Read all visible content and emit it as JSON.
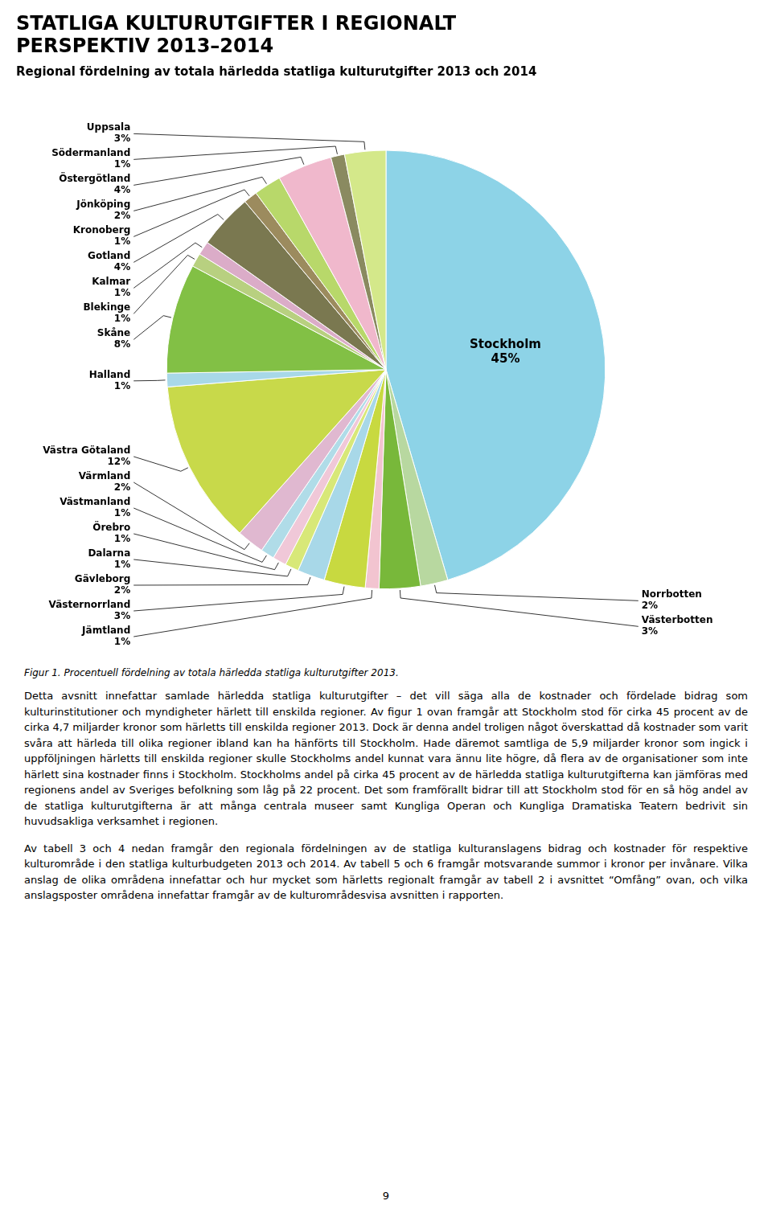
{
  "chart_data": {
    "type": "pie",
    "title": [
      "STATLIGA KULTURUTGIFTER I REGIONALT",
      "PERSPEKTIV 2013–2014"
    ],
    "subtitle": "Regional fördelning av totala härledda statliga kulturutgifter 2013 och 2014",
    "categories": [
      "Stockholm",
      "Norrbotten",
      "Västerbotten",
      "Jämtland",
      "Västernorrland",
      "Gävleborg",
      "Dalarna",
      "Örebro",
      "Västmanland",
      "Värmland",
      "Västra Götaland",
      "Halland",
      "Skåne",
      "Blekinge",
      "Kalmar",
      "Gotland",
      "Kronoberg",
      "Jönköping",
      "Östergötland",
      "Södermanland",
      "Uppsala"
    ],
    "values": [
      45,
      2,
      3,
      1,
      3,
      2,
      1,
      1,
      1,
      2,
      12,
      1,
      8,
      1,
      1,
      4,
      1,
      2,
      4,
      1,
      3
    ],
    "value_labels": [
      "45%",
      "2%",
      "3%",
      "1%",
      "3%",
      "2%",
      "1%",
      "1%",
      "1%",
      "2%",
      "12%",
      "1%",
      "8%",
      "1%",
      "1%",
      "4%",
      "1%",
      "2%",
      "4%",
      "1%",
      "3%"
    ],
    "colors": [
      "#8dd3e7",
      "#b8d8a0",
      "#78b83a",
      "#f2c4d0",
      "#c8d940",
      "#a8d8e8",
      "#d8e878",
      "#f0c8d8",
      "#b0dce8",
      "#e0b8d0",
      "#c8d94a",
      "#a8d8e8",
      "#82c045",
      "#b8d080",
      "#dbacc8",
      "#7a7850",
      "#9c8b5e",
      "#b8d86a",
      "#f0b8cc",
      "#8a8a60",
      "#d4e88a"
    ],
    "data_labels": true,
    "annotations": [
      "Figur 1. Procentuell fördelning av totala härledda statliga kulturutgifter 2013.",
      "Detta avsnitt innefattar samlade härledda statliga kulturutgifter – det vill säga alla de kostnader och fördelade bidrag som kulturinstitutioner och myndigheter härlett till enskilda regioner. Av figur 1 ovan framgår att Stockholm stod för cirka 45 procent av de cirka 4,7 miljarder kronor som härletts till enskilda regioner 2013. Dock är denna andel troligen något överskattad då kostnader som varit svåra att härleda till olika regioner ibland kan ha hänförts till Stockholm. Hade däremot samtliga de 5,9 miljarder kronor som ingick i uppföljningen härletts till enskilda regioner skulle Stockholms andel kunnat vara ännu lite högre, då flera av de organisationer som inte härlett sina kostnader finns i Stockholm. Stockholms andel på cirka 45 procent av de härledda statliga kulturutgifterna kan jämföras med regionens andel av Sveriges befolkning som låg på 22 procent. Det som framförallt bidrar till att Stockholm stod för en så hög andel av de statliga kulturutgifterna är att många centrala museer samt Kungliga Operan och Kungliga Dramatiska Teatern bedrivit sin huvudsakliga verksamhet i regionen.",
      "Av tabell 3 och 4 nedan framgår den regionala fördelningen av de statliga kulturanslagens bidrag och kostnader för respektive kulturområde i den statliga kulturbudgeten 2013 och 2014. Av tabell 5 och 6 framgår motsvarande summor i kronor per invånare. Vilka anslag de olika områdena innefattar och hur mycket som härletts regionalt framgår av tabell 2 i avsnittet “Omfång” ovan, och vilka anslagsposter områdena innefattar framgår av de kulturområdesvisa avsnitten i rapporten.",
      "9"
    ]
  }
}
